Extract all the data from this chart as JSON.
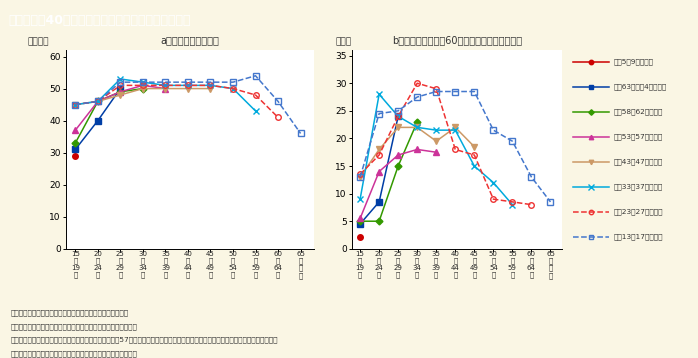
{
  "title": "第１－特－40図　男性の就業時間の世代による特徴",
  "title_bg": "#7B6B52",
  "bg_color": "#FAF6E4",
  "plot_bg": "#FFFFFF",
  "subtitle_a": "a．平均週間就業時間",
  "subtitle_b": "b．週間就業時間が60時間以上の就業者の割合",
  "ylabel_a": "（時間）",
  "ylabel_b": "（％）",
  "x_ticks": [
    15,
    20,
    25,
    30,
    35,
    40,
    45,
    50,
    55,
    60,
    65
  ],
  "x_labels_line1": [
    "15",
    "20",
    "25",
    "30",
    "35",
    "40",
    "45",
    "50",
    "55",
    "60",
    "65"
  ],
  "x_labels_line2": [
    "〜",
    "〜",
    "〜",
    "〜",
    "〜",
    "〜",
    "〜",
    "〜",
    "〜",
    "〜",
    "歳"
  ],
  "x_labels_line3": [
    "19",
    "24",
    "29",
    "34",
    "39",
    "44",
    "49",
    "54",
    "59",
    "64",
    "以"
  ],
  "x_labels_line4": [
    "歳",
    "歳",
    "歳",
    "歳",
    "歳",
    "歳",
    "歳",
    "歳",
    "歳",
    "歳",
    "上"
  ],
  "note1": "（備考）１．総務省「労働力調査（基本集計）」より作成。",
  "note2": "　　　　２．出生年５年刻みを１つの世代としてまとめている。",
  "note3": "　　　　３．グラフが煩雑になるのを避けるため、昭和57年以前生まれの世代については１世代おきに表記している。表記を省略した",
  "note4": "　　　　　　世代についても、おおむね同様の傾向が見られる。",
  "series": [
    {
      "label": "平成5～9年生まれ",
      "color": "#CC0000",
      "marker": "o",
      "linestyle": "-",
      "markersize": 4,
      "fillstyle": "full",
      "data_a": [
        [
          15,
          29
        ]
      ],
      "data_b": [
        [
          15,
          2.2
        ]
      ]
    },
    {
      "label": "昭和63～平成4年生まれ",
      "color": "#003EA6",
      "marker": "s",
      "linestyle": "-",
      "markersize": 4,
      "fillstyle": "full",
      "data_a": [
        [
          15,
          31
        ],
        [
          20,
          40
        ],
        [
          25,
          50
        ]
      ],
      "data_b": [
        [
          15,
          4.5
        ],
        [
          20,
          8.5
        ],
        [
          25,
          24.0
        ]
      ]
    },
    {
      "label": "昭和58～62年生まれ",
      "color": "#339900",
      "marker": "D",
      "linestyle": "-",
      "markersize": 3.5,
      "fillstyle": "full",
      "data_a": [
        [
          15,
          33
        ],
        [
          20,
          46
        ],
        [
          25,
          49
        ],
        [
          30,
          50
        ]
      ],
      "data_b": [
        [
          15,
          5.0
        ],
        [
          20,
          5.0
        ],
        [
          25,
          15.0
        ],
        [
          30,
          23.0
        ]
      ]
    },
    {
      "label": "昭和53～57年生まれ",
      "color": "#CC3399",
      "marker": "^",
      "linestyle": "-",
      "markersize": 4,
      "fillstyle": "full",
      "data_a": [
        [
          15,
          37
        ],
        [
          20,
          46
        ],
        [
          25,
          49
        ],
        [
          30,
          51
        ],
        [
          35,
          50
        ]
      ],
      "data_b": [
        [
          15,
          5.5
        ],
        [
          20,
          14.0
        ],
        [
          25,
          17.0
        ],
        [
          30,
          18.0
        ],
        [
          35,
          17.5
        ]
      ]
    },
    {
      "label": "昭和43～47年生まれ",
      "color": "#CC9966",
      "marker": "v",
      "linestyle": "-",
      "markersize": 4,
      "fillstyle": "full",
      "data_a": [
        [
          15,
          45
        ],
        [
          20,
          46
        ],
        [
          25,
          48
        ],
        [
          30,
          50
        ],
        [
          35,
          50
        ],
        [
          40,
          50
        ],
        [
          45,
          50
        ]
      ],
      "data_b": [
        [
          15,
          13.0
        ],
        [
          20,
          18.0
        ],
        [
          25,
          22.0
        ],
        [
          30,
          22.0
        ],
        [
          35,
          19.5
        ],
        [
          40,
          22.0
        ],
        [
          45,
          18.5
        ]
      ]
    },
    {
      "label": "昭和33～37年生まれ",
      "color": "#00AADD",
      "marker": "x",
      "linestyle": "-",
      "markersize": 5,
      "fillstyle": "full",
      "data_a": [
        [
          15,
          45
        ],
        [
          20,
          46
        ],
        [
          25,
          53
        ],
        [
          30,
          52
        ],
        [
          35,
          51
        ],
        [
          40,
          51
        ],
        [
          45,
          51
        ],
        [
          50,
          50
        ],
        [
          55,
          43
        ]
      ],
      "data_b": [
        [
          15,
          9.0
        ],
        [
          20,
          28.0
        ],
        [
          25,
          24.0
        ],
        [
          30,
          22.0
        ],
        [
          35,
          21.5
        ],
        [
          40,
          21.5
        ],
        [
          45,
          15.0
        ],
        [
          50,
          12.0
        ],
        [
          55,
          8.0
        ]
      ]
    },
    {
      "label": "昭和23～27年生まれ",
      "color": "#EE3333",
      "marker": "o",
      "linestyle": "--",
      "markersize": 4,
      "fillstyle": "none",
      "data_a": [
        [
          15,
          45
        ],
        [
          20,
          46
        ],
        [
          25,
          51
        ],
        [
          30,
          51
        ],
        [
          35,
          51
        ],
        [
          40,
          51
        ],
        [
          45,
          51
        ],
        [
          50,
          50
        ],
        [
          55,
          48
        ],
        [
          60,
          41
        ]
      ],
      "data_b": [
        [
          15,
          13.5
        ],
        [
          20,
          17.0
        ],
        [
          25,
          24.0
        ],
        [
          30,
          30.0
        ],
        [
          35,
          29.0
        ],
        [
          40,
          18.0
        ],
        [
          45,
          17.0
        ],
        [
          50,
          9.0
        ],
        [
          55,
          8.5
        ],
        [
          60,
          8.0
        ]
      ]
    },
    {
      "label": "昭和13～17年生まれ",
      "color": "#4477CC",
      "marker": "s",
      "linestyle": "--",
      "markersize": 4,
      "fillstyle": "none",
      "data_a": [
        [
          15,
          45
        ],
        [
          20,
          46
        ],
        [
          25,
          52
        ],
        [
          30,
          52
        ],
        [
          35,
          52
        ],
        [
          40,
          52
        ],
        [
          45,
          52
        ],
        [
          50,
          52
        ],
        [
          55,
          54
        ],
        [
          60,
          46
        ],
        [
          65,
          36
        ]
      ],
      "data_b": [
        [
          15,
          13.0
        ],
        [
          20,
          24.5
        ],
        [
          25,
          25.0
        ],
        [
          30,
          27.5
        ],
        [
          35,
          28.5
        ],
        [
          40,
          28.5
        ],
        [
          45,
          28.5
        ],
        [
          50,
          21.5
        ],
        [
          55,
          19.5
        ],
        [
          60,
          13.0
        ],
        [
          65,
          8.5
        ]
      ]
    }
  ]
}
